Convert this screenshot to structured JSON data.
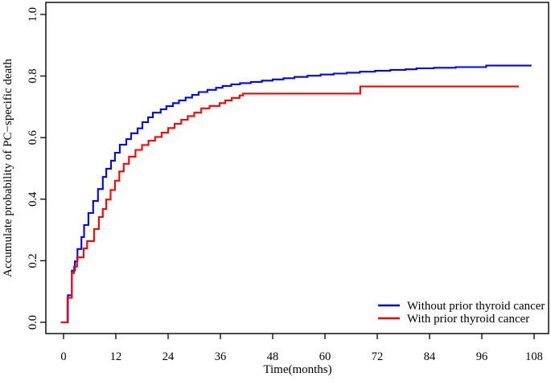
{
  "figure": {
    "background_color": "#ffffff",
    "frame_color": "#000000"
  },
  "chart_data": {
    "type": "line",
    "subtype": "step-function-cumulative-incidence",
    "title": "",
    "xlabel": "Time(months)",
    "ylabel": "Accumulate probability of PC−specific death",
    "xlim": [
      -4,
      111
    ],
    "ylim": [
      -0.03,
      1.04
    ],
    "x_ticks": [
      0,
      12,
      24,
      36,
      48,
      60,
      72,
      84,
      96,
      108
    ],
    "y_ticks": [
      0.0,
      0.2,
      0.4,
      0.6,
      0.8,
      1.0
    ],
    "grid": false,
    "legend_position": "bottom-right",
    "series": [
      {
        "name": "Without prior thyroid cancer",
        "color": "#0000ff",
        "step": true,
        "end_time": 107.4,
        "final_value": 0.834,
        "points": [
          [
            -0.6,
            0
          ],
          [
            1,
            0.088
          ],
          [
            1.9,
            0.168
          ],
          [
            2.6,
            0.198
          ],
          [
            3.2,
            0.238
          ],
          [
            4.1,
            0.277
          ],
          [
            4.7,
            0.316
          ],
          [
            5.7,
            0.355
          ],
          [
            6.8,
            0.394
          ],
          [
            7.9,
            0.433
          ],
          [
            9,
            0.472
          ],
          [
            9.8,
            0.499
          ],
          [
            10.9,
            0.525
          ],
          [
            11.8,
            0.551
          ],
          [
            12.9,
            0.577
          ],
          [
            14.4,
            0.595
          ],
          [
            15.5,
            0.614
          ],
          [
            17,
            0.63
          ],
          [
            18.1,
            0.65
          ],
          [
            19.4,
            0.666
          ],
          [
            20.5,
            0.681
          ],
          [
            22.3,
            0.692
          ],
          [
            23.6,
            0.702
          ],
          [
            25.1,
            0.712
          ],
          [
            26.5,
            0.721
          ],
          [
            28,
            0.73
          ],
          [
            29.5,
            0.739
          ],
          [
            31,
            0.748
          ],
          [
            33,
            0.755
          ],
          [
            35,
            0.762
          ],
          [
            36.5,
            0.768
          ],
          [
            38.5,
            0.773
          ],
          [
            40.5,
            0.777
          ],
          [
            43,
            0.781
          ],
          [
            45.5,
            0.785
          ],
          [
            48,
            0.789
          ],
          [
            50.5,
            0.793
          ],
          [
            53,
            0.797
          ],
          [
            56,
            0.801
          ],
          [
            59,
            0.805
          ],
          [
            62,
            0.808
          ],
          [
            65,
            0.811
          ],
          [
            68,
            0.814
          ],
          [
            71.5,
            0.817
          ],
          [
            75,
            0.82
          ],
          [
            78.5,
            0.822
          ],
          [
            81,
            0.825
          ],
          [
            85,
            0.827
          ],
          [
            90,
            0.829
          ],
          [
            97,
            0.834
          ]
        ]
      },
      {
        "name": "With prior thyroid cancer",
        "color": "#ff0000",
        "step": true,
        "end_time": 104.5,
        "final_value": 0.766,
        "points": [
          [
            -0.6,
            0
          ],
          [
            0.9,
            0.08
          ],
          [
            1.9,
            0.16
          ],
          [
            2.4,
            0.181
          ],
          [
            3.1,
            0.211
          ],
          [
            4.6,
            0.24
          ],
          [
            5.4,
            0.264
          ],
          [
            7,
            0.303
          ],
          [
            8.1,
            0.342
          ],
          [
            9,
            0.368
          ],
          [
            9.8,
            0.399
          ],
          [
            10.8,
            0.43
          ],
          [
            11.8,
            0.46
          ],
          [
            12.8,
            0.49
          ],
          [
            13.8,
            0.515
          ],
          [
            15,
            0.538
          ],
          [
            16.5,
            0.56
          ],
          [
            18,
            0.576
          ],
          [
            19.5,
            0.59
          ],
          [
            21,
            0.602
          ],
          [
            22.5,
            0.616
          ],
          [
            24,
            0.631
          ],
          [
            25.5,
            0.645
          ],
          [
            27,
            0.658
          ],
          [
            28.5,
            0.67
          ],
          [
            30,
            0.681
          ],
          [
            31.6,
            0.695
          ],
          [
            33.5,
            0.703
          ],
          [
            35.8,
            0.712
          ],
          [
            37.1,
            0.721
          ],
          [
            38.6,
            0.729
          ],
          [
            40.4,
            0.737
          ],
          [
            41.2,
            0.743
          ],
          [
            68.1,
            0.766
          ]
        ]
      }
    ]
  },
  "legend": {
    "entries": [
      {
        "label": "Without prior thyroid cancer",
        "color": "#0000ff"
      },
      {
        "label": "With prior thyroid cancer",
        "color": "#ff0000"
      }
    ]
  }
}
